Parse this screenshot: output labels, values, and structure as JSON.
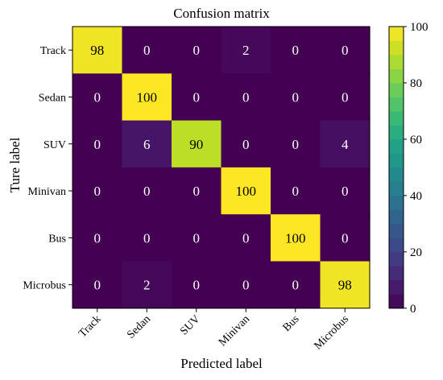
{
  "chart_data": {
    "type": "heatmap",
    "title": "Confusion matrix",
    "xlabel": "Predicted label",
    "ylabel": "Ture label",
    "x_categories": [
      "Track",
      "Sedan",
      "SUV",
      "Minivan",
      "Bus",
      "Microbus"
    ],
    "y_categories": [
      "Track",
      "Sedan",
      "SUV",
      "Minivan",
      "Bus",
      "Microbus"
    ],
    "values": [
      [
        98,
        0,
        0,
        2,
        0,
        0
      ],
      [
        0,
        100,
        0,
        0,
        0,
        0
      ],
      [
        0,
        6,
        90,
        0,
        0,
        4
      ],
      [
        0,
        0,
        0,
        100,
        0,
        0
      ],
      [
        0,
        0,
        0,
        0,
        100,
        0
      ],
      [
        0,
        2,
        0,
        0,
        0,
        98
      ]
    ],
    "colorbar": {
      "colormap": "viridis",
      "range": [
        0,
        100
      ],
      "ticks": [
        0,
        20,
        40,
        60,
        80,
        100
      ]
    },
    "annotation_colors": {
      "dark_cell": "#000000",
      "light_cell": "#ffffff"
    }
  }
}
